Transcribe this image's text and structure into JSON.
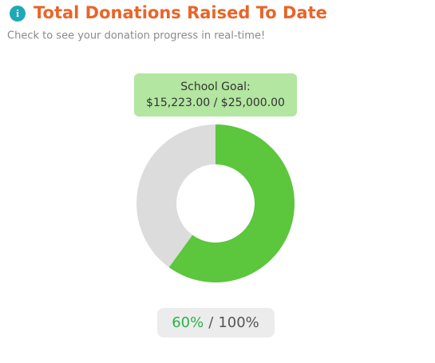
{
  "chart_data": {
    "type": "donut",
    "title": "Total Donations Raised To Date",
    "subtitle": "Check to see your donation progress in real-time!",
    "tooltip": {
      "title": "School Goal:",
      "text": "$15,223.00 / $25,000.00"
    },
    "value": 60,
    "value_label": "60%",
    "total": 100,
    "total_label": "100%",
    "separator": "/",
    "color": "#5cc63d",
    "track_color": "#dcdcdc"
  }
}
